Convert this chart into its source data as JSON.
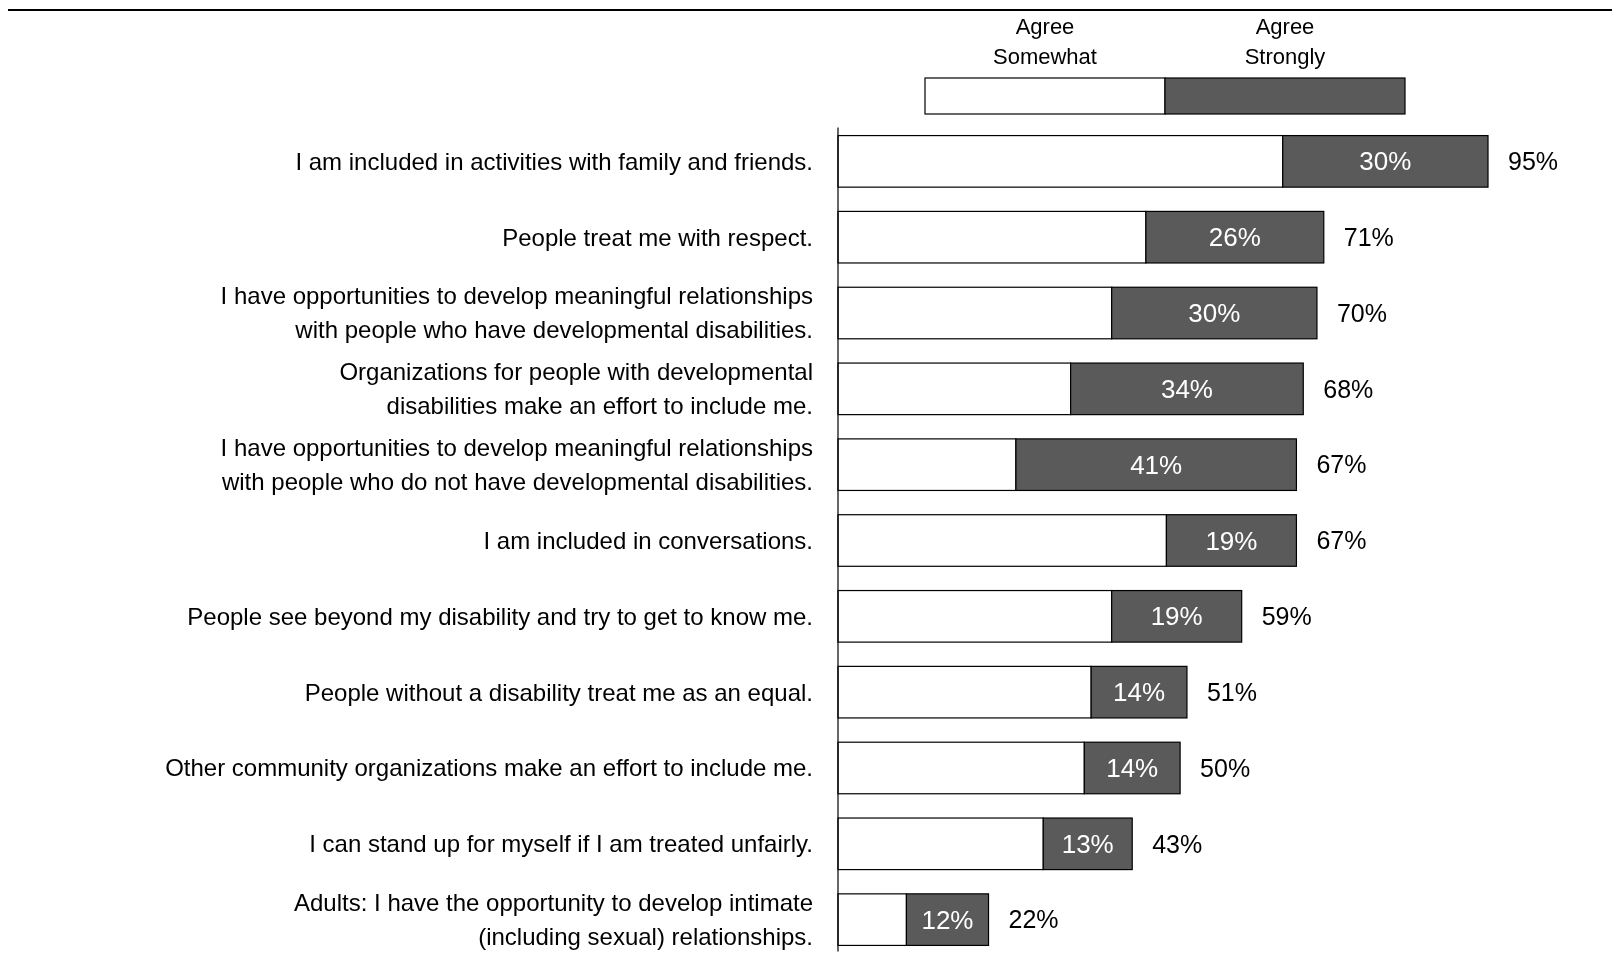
{
  "chart_data": {
    "type": "bar",
    "orientation": "horizontal",
    "stacked": true,
    "legend": "top",
    "categories": [
      "I am included in activities with family and friends.",
      "People treat me with respect.",
      "I have opportunities to develop meaningful relationships\nwith people who have developmental disabilities.",
      "Organizations for people with developmental\ndisabilities make an effort to include me.",
      "I have opportunities to develop meaningful relationships\nwith people who do not have developmental disabilities.",
      "I am included in conversations.",
      "People see beyond my disability and try to get to know me.",
      "People without a disability treat me as an equal.",
      "Other community organizations make an effort to include me.",
      "I can stand up for myself if I am treated unfairly.",
      "Adults:  I have the opportunity to develop intimate\n(including sexual) relationships."
    ],
    "series": [
      {
        "name": "Agree\nSomewhat",
        "color": "#ffffff",
        "values": [
          65,
          45,
          40,
          34,
          26,
          48,
          40,
          37,
          36,
          30,
          10
        ]
      },
      {
        "name": "Agree\nStrongly",
        "color": "#5a5a5a",
        "values": [
          30,
          26,
          30,
          34,
          41,
          19,
          19,
          14,
          14,
          13,
          12
        ],
        "value_labels": [
          "30%",
          "26%",
          "30%",
          "34%",
          "41%",
          "19%",
          "19%",
          "14%",
          "14%",
          "13%",
          "12%"
        ]
      }
    ],
    "totals": [
      "95%",
      "71%",
      "70%",
      "68%",
      "67%",
      "67%",
      "59%",
      "51%",
      "50%",
      "43%",
      "22%"
    ]
  }
}
